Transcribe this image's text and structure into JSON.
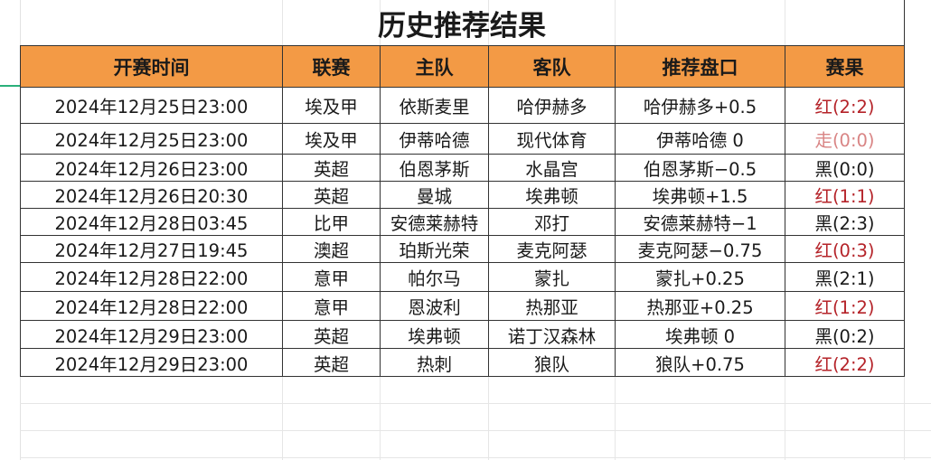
{
  "sheet": {
    "title": "历史推荐结果",
    "headers": [
      "开赛时间",
      "联赛",
      "主队",
      "客队",
      "推荐盘口",
      "赛果"
    ],
    "rows": [
      {
        "time": "2024年12月25日23:00",
        "league": "埃及甲",
        "home": "依斯麦里",
        "away": "哈伊赫多",
        "pick": "哈伊赫多+0.5",
        "result": "红(2:2)",
        "status": "red"
      },
      {
        "time": "2024年12月25日23:00",
        "league": "埃及甲",
        "home": "伊蒂哈德",
        "away": "现代体育",
        "pick": "伊蒂哈德 0",
        "result": "走(0:0)",
        "status": "push"
      },
      {
        "time": "2024年12月26日23:00",
        "league": "英超",
        "home": "伯恩茅斯",
        "away": "水晶宫",
        "pick": "伯恩茅斯−0.5",
        "result": "黑(0:0)",
        "status": "black"
      },
      {
        "time": "2024年12月26日20:30",
        "league": "英超",
        "home": "曼城",
        "away": "埃弗顿",
        "pick": "埃弗顿+1.5",
        "result": "红(1:1)",
        "status": "red"
      },
      {
        "time": "2024年12月28日03:45",
        "league": "比甲",
        "home": "安德莱赫特",
        "away": "邓打",
        "pick": "安德莱赫特−1",
        "result": "黑(2:3)",
        "status": "black"
      },
      {
        "time": "2024年12月27日19:45",
        "league": "澳超",
        "home": "珀斯光荣",
        "away": "麦克阿瑟",
        "pick": "麦克阿瑟−0.75",
        "result": "红(0:3)",
        "status": "red"
      },
      {
        "time": "2024年12月28日22:00",
        "league": "意甲",
        "home": "帕尔马",
        "away": "蒙扎",
        "pick": "蒙扎+0.25",
        "result": "黑(2:1)",
        "status": "black"
      },
      {
        "time": "2024年12月28日22:00",
        "league": "意甲",
        "home": "恩波利",
        "away": "热那亚",
        "pick": "热那亚+0.25",
        "result": "红(1:2)",
        "status": "red"
      },
      {
        "time": "2024年12月29日23:00",
        "league": "英超",
        "home": "埃弗顿",
        "away": "诺丁汉森林",
        "pick": "埃弗顿 0",
        "result": "黑(0:2)",
        "status": "black"
      },
      {
        "time": "2024年12月29日23:00",
        "league": "英超",
        "home": "热刺",
        "away": "狼队",
        "pick": "狼队+0.75",
        "result": "红(2:2)",
        "status": "red"
      }
    ]
  },
  "colors": {
    "header_bg": "#f39a45",
    "red": "#b5242a",
    "push": "#d98585",
    "black": "#1a1a1a",
    "selection": "#2bb07a"
  }
}
